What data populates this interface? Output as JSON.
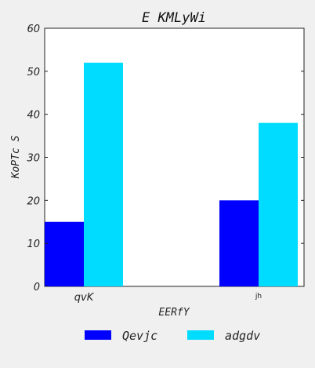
{
  "chart_data": {
    "type": "bar",
    "title": "E  KMLyWi",
    "xlabel": "EERfY",
    "ylabel": "KoPTc S",
    "categories": [
      "qvK",
      "jh"
    ],
    "series": [
      {
        "name": "Qevjc",
        "values": [
          15,
          20
        ],
        "color": "#0000ff"
      },
      {
        "name": "adgdv",
        "values": [
          52,
          38
        ],
        "color": "#00dcff"
      }
    ],
    "ylim": [
      0,
      60
    ],
    "yticks": [
      0,
      10,
      20,
      30,
      40,
      50,
      60
    ],
    "grid": false,
    "legend_position": "bottom"
  }
}
